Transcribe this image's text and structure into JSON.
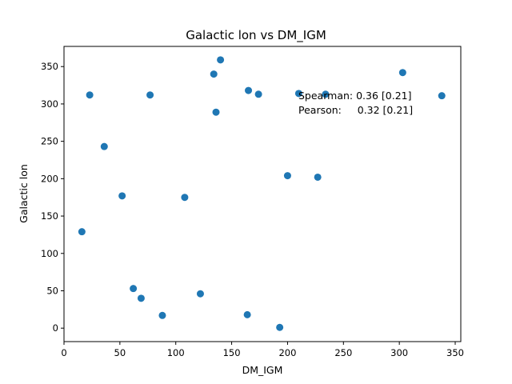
{
  "chart_data": {
    "type": "scatter",
    "title": "Galactic lon vs DM_IGM",
    "xlabel": "DM_IGM",
    "ylabel": "Galactic lon",
    "xlim": [
      0,
      355
    ],
    "ylim": [
      -18,
      377
    ],
    "xticks": [
      0,
      50,
      100,
      150,
      200,
      250,
      300,
      350
    ],
    "yticks": [
      0,
      50,
      100,
      150,
      200,
      250,
      300,
      350
    ],
    "grid": false,
    "marker_color": "#1f77b4",
    "x": [
      16,
      23,
      36,
      52,
      62,
      69,
      77,
      88,
      108,
      122,
      134,
      136,
      140,
      164,
      165,
      174,
      193,
      200,
      210,
      227,
      234,
      303,
      338
    ],
    "y": [
      129,
      312,
      243,
      177,
      53,
      40,
      312,
      17,
      175,
      46,
      340,
      289,
      359,
      18,
      318,
      313,
      1,
      204,
      314,
      202,
      313,
      342,
      311
    ],
    "annotations": [
      "Spearman: 0.36 [0.21]",
      "Pearson:     0.32 [0.21]"
    ]
  }
}
